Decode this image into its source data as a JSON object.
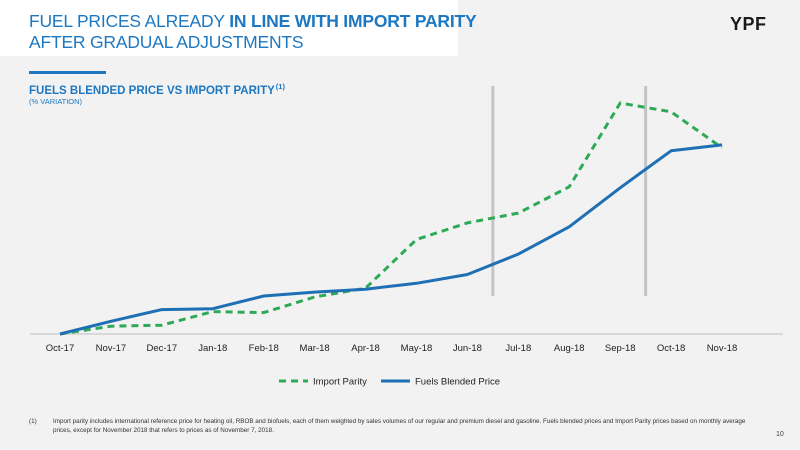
{
  "header": {
    "title_part1": "FUEL PRICES ALREADY ",
    "title_bold": "IN LINE WITH IMPORT PARITY",
    "title_line2": "AFTER GRADUAL ADJUSTMENTS",
    "logo": "YPF"
  },
  "chart_section": {
    "title": "FUELS BLENDED PRICE VS IMPORT PARITY",
    "title_note": "(1)",
    "subtitle": "(% VARIATION)"
  },
  "chart_data": {
    "type": "line",
    "categories": [
      "Oct-17",
      "Nov-17",
      "Dec-17",
      "Jan-18",
      "Feb-18",
      "Mar-18",
      "Apr-18",
      "May-18",
      "Jun-18",
      "Jul-18",
      "Aug-18",
      "Sep-18",
      "Oct-18",
      "Nov-18"
    ],
    "series": [
      {
        "name": "Import Parity",
        "color": "#2eaa57",
        "style": "dashed",
        "values": [
          0,
          4,
          4.5,
          11.5,
          11,
          19,
          23.5,
          48.5,
          57,
          62,
          75.5,
          118.5,
          114,
          95.5
        ]
      },
      {
        "name": "Fuels Blended Price",
        "color": "#1f6fb4",
        "style": "solid",
        "values": [
          0,
          6.5,
          12.5,
          13,
          19.5,
          21.5,
          23,
          26,
          30.5,
          41,
          55,
          75,
          94,
          97
        ]
      }
    ],
    "vertical_markers_after": [
      "Jun-18",
      "Sep-18"
    ],
    "legend_position": "bottom-center",
    "grid": false
  },
  "footnote": {
    "mark": "(1)",
    "text": "Import parity includes international reference price for heating oil, RBOB and biofuels, each of them weighted by sales volumes of our regular and premium diesel and gasoline. Fuels blended prices and Import Parity prices based on monthly average prices, except for November 2018 that refers to prices as of November 7, 2018."
  },
  "page_number": "10"
}
